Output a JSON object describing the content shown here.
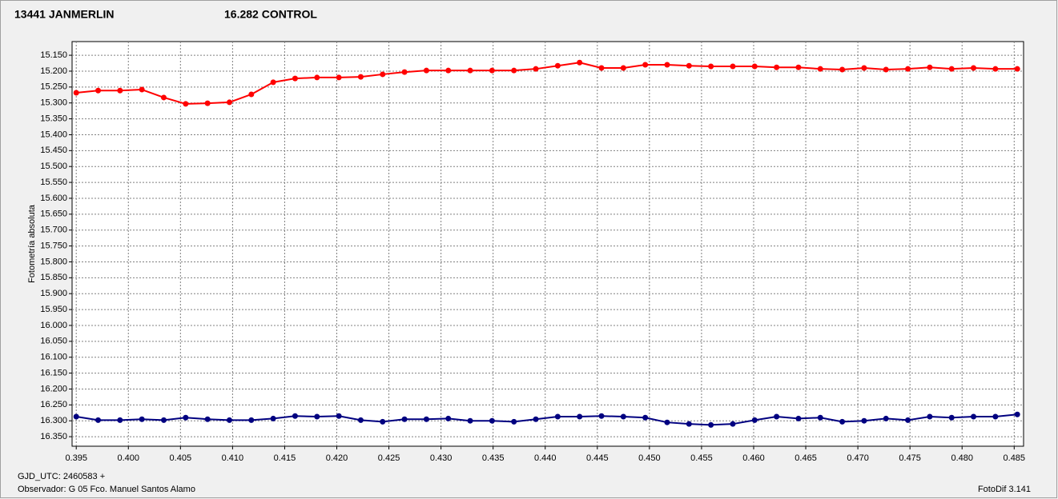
{
  "chart_data": {
    "type": "line",
    "y_inverted": true,
    "grid": true,
    "ylabel": "Fotometría absoluta",
    "xlim": [
      0.3946,
      0.4859
    ],
    "ylim": [
      15.107,
      16.38
    ],
    "xticks": [
      0.395,
      {
        "value": 0.4,
        "label": "0.400"
      },
      0.405,
      {
        "value": 0.41,
        "label": "0.410"
      },
      0.415,
      {
        "value": 0.42,
        "label": "0.420"
      },
      0.425,
      {
        "value": 0.43,
        "label": "0.430"
      },
      0.435,
      {
        "value": 0.44,
        "label": "0.440"
      },
      0.445,
      {
        "value": 0.45,
        "label": "0.450"
      },
      0.455,
      {
        "value": 0.46,
        "label": "0.460"
      },
      0.465,
      {
        "value": 0.47,
        "label": "0.470"
      },
      0.475,
      {
        "value": 0.48,
        "label": "0.480"
      },
      0.485
    ],
    "yticks": [
      {
        "value": 15.15,
        "label": "15.150"
      },
      {
        "value": 15.2,
        "label": "15.200"
      },
      {
        "value": 15.25,
        "label": "15.250"
      },
      {
        "value": 15.3,
        "label": "15.300"
      },
      {
        "value": 15.35,
        "label": "15.350"
      },
      {
        "value": 15.4,
        "label": "15.400"
      },
      {
        "value": 15.45,
        "label": "15.450"
      },
      {
        "value": 15.5,
        "label": "15.500"
      },
      {
        "value": 15.55,
        "label": "15.550"
      },
      {
        "value": 15.6,
        "label": "15.600"
      },
      {
        "value": 15.65,
        "label": "15.650"
      },
      {
        "value": 15.7,
        "label": "15.700"
      },
      {
        "value": 15.75,
        "label": "15.750"
      },
      {
        "value": 15.8,
        "label": "15.800"
      },
      {
        "value": 15.85,
        "label": "15.850"
      },
      {
        "value": 15.9,
        "label": "15.900"
      },
      {
        "value": 15.95,
        "label": "15.950"
      },
      {
        "value": 16,
        "label": "16.000"
      },
      {
        "value": 16.05,
        "label": "16.050"
      },
      {
        "value": 16.1,
        "label": "16.100"
      },
      {
        "value": 16.15,
        "label": "16.150"
      },
      {
        "value": 16.2,
        "label": "16.200"
      },
      {
        "value": 16.25,
        "label": "16.250"
      },
      {
        "value": 16.3,
        "label": "16.300"
      },
      {
        "value": 16.35,
        "label": "16.350"
      }
    ],
    "x": [
      0.395,
      0.3971,
      0.3992,
      0.4013,
      0.4034,
      0.4055,
      0.4076,
      0.4097,
      0.4118,
      0.4139,
      0.416,
      0.4181,
      0.4202,
      0.4223,
      0.4244,
      0.4265,
      0.4286,
      0.4307,
      0.4328,
      0.4349,
      0.437,
      0.4391,
      0.4412,
      0.4433,
      0.4454,
      0.4475,
      0.4496,
      0.4517,
      0.4538,
      0.4559,
      0.458,
      0.4601,
      0.4622,
      0.4643,
      0.4664,
      0.4685,
      0.4706,
      0.4727,
      0.4748,
      0.4769,
      0.479,
      0.4811,
      0.4832,
      0.4853
    ],
    "series": [
      {
        "name": "13441 JANMERLIN",
        "color": "#ff0000",
        "values": [
          15.268,
          15.261,
          15.261,
          15.258,
          15.283,
          15.303,
          15.301,
          15.298,
          15.273,
          15.235,
          15.223,
          15.22,
          15.22,
          15.218,
          15.21,
          15.203,
          15.198,
          15.198,
          15.198,
          15.198,
          15.198,
          15.193,
          15.183,
          15.173,
          15.19,
          15.19,
          15.18,
          15.18,
          15.183,
          15.185,
          15.185,
          15.185,
          15.188,
          15.188,
          15.193,
          15.195,
          15.19,
          15.195,
          15.193,
          15.188,
          15.193,
          15.19,
          15.193,
          15.193
        ]
      },
      {
        "name": "16.282 CONTROL",
        "color": "#000080",
        "values": [
          16.287,
          16.298,
          16.298,
          16.295,
          16.298,
          16.29,
          16.295,
          16.298,
          16.298,
          16.293,
          16.285,
          16.287,
          16.285,
          16.298,
          16.303,
          16.295,
          16.295,
          16.293,
          16.3,
          16.3,
          16.303,
          16.295,
          16.287,
          16.287,
          16.285,
          16.287,
          16.29,
          16.305,
          16.31,
          16.313,
          16.31,
          16.298,
          16.287,
          16.293,
          16.29,
          16.303,
          16.3,
          16.293,
          16.298,
          16.287,
          16.29,
          16.287,
          16.287,
          16.28
        ]
      }
    ]
  },
  "footer": {
    "date_base": "GJD_UTC: 2460583 +",
    "observer": "Observador: G 05  Fco. Manuel Santos Alamo",
    "software": "FotoDif 3.141"
  }
}
